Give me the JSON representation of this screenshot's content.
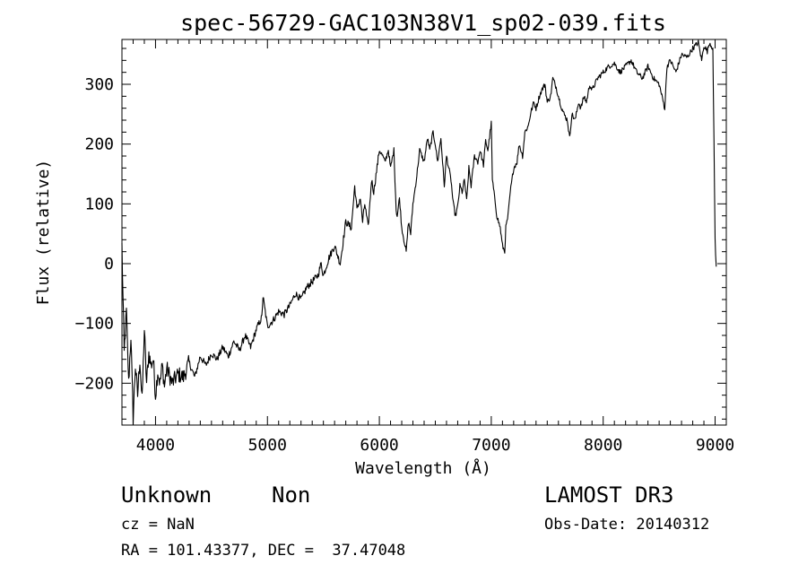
{
  "chart_data": {
    "type": "line",
    "title": "spec-56729-GAC103N38V1_sp02-039.fits",
    "xlabel": "Wavelength (Å)",
    "ylabel": "Flux (relative)",
    "xlim": [
      3700,
      9100
    ],
    "ylim": [
      -270,
      375
    ],
    "xticks": [
      4000,
      5000,
      6000,
      7000,
      8000,
      9000
    ],
    "yticks": [
      -200,
      -100,
      0,
      100,
      200,
      300
    ],
    "xtick_labels": [
      "4000",
      "5000",
      "6000",
      "7000",
      "8000",
      "9000"
    ],
    "ytick_labels": [
      "−200",
      "−100",
      "0",
      "100",
      "200",
      "300"
    ],
    "grid": false,
    "series": [
      {
        "line_color": "#000000",
        "x": [
          3700,
          3720,
          3740,
          3760,
          3780,
          3800,
          3820,
          3840,
          3860,
          3880,
          3900,
          3920,
          3940,
          3960,
          3980,
          4000,
          4020,
          4040,
          4060,
          4080,
          4100,
          4150,
          4200,
          4250,
          4300,
          4350,
          4400,
          4450,
          4500,
          4550,
          4600,
          4650,
          4700,
          4750,
          4800,
          4850,
          4900,
          4950,
          4960,
          5000,
          5050,
          5100,
          5150,
          5200,
          5250,
          5300,
          5350,
          5400,
          5450,
          5480,
          5500,
          5550,
          5600,
          5650,
          5700,
          5750,
          5780,
          5800,
          5830,
          5850,
          5870,
          5900,
          5930,
          5950,
          6000,
          6030,
          6050,
          6080,
          6100,
          6130,
          6150,
          6160,
          6180,
          6200,
          6220,
          6240,
          6260,
          6280,
          6300,
          6330,
          6360,
          6400,
          6430,
          6450,
          6480,
          6500,
          6520,
          6550,
          6580,
          6600,
          6620,
          6640,
          6660,
          6680,
          6700,
          6720,
          6740,
          6760,
          6780,
          6800,
          6820,
          6850,
          6880,
          6900,
          6930,
          6950,
          6970,
          6990,
          7000,
          7010,
          7030,
          7050,
          7080,
          7100,
          7120,
          7130,
          7150,
          7170,
          7200,
          7230,
          7250,
          7280,
          7300,
          7330,
          7350,
          7380,
          7400,
          7430,
          7450,
          7480,
          7500,
          7530,
          7550,
          7580,
          7600,
          7630,
          7650,
          7680,
          7700,
          7720,
          7750,
          7780,
          7800,
          7830,
          7850,
          7880,
          7900,
          7950,
          8000,
          8050,
          8100,
          8150,
          8200,
          8250,
          8300,
          8350,
          8400,
          8450,
          8500,
          8550,
          8570,
          8600,
          8650,
          8700,
          8750,
          8800,
          8850,
          8880,
          8900,
          8930,
          8950,
          8980,
          9000,
          9010
        ],
        "y": [
          30,
          -150,
          -80,
          -200,
          -120,
          -260,
          -170,
          -220,
          -160,
          -230,
          -110,
          -200,
          -150,
          -170,
          -160,
          -220,
          -180,
          -200,
          -170,
          -205,
          -175,
          -200,
          -185,
          -190,
          -165,
          -190,
          -155,
          -170,
          -150,
          -160,
          -140,
          -155,
          -130,
          -145,
          -120,
          -140,
          -110,
          -90,
          -55,
          -105,
          -95,
          -80,
          -85,
          -70,
          -50,
          -60,
          -40,
          -30,
          -20,
          0,
          -20,
          10,
          30,
          0,
          70,
          60,
          130,
          90,
          110,
          70,
          100,
          60,
          140,
          120,
          190,
          180,
          170,
          190,
          160,
          190,
          90,
          80,
          110,
          60,
          40,
          20,
          70,
          50,
          100,
          140,
          190,
          170,
          210,
          190,
          220,
          200,
          170,
          210,
          130,
          180,
          160,
          140,
          100,
          80,
          95,
          130,
          120,
          140,
          105,
          160,
          130,
          180,
          170,
          190,
          165,
          205,
          190,
          220,
          235,
          140,
          110,
          80,
          60,
          30,
          20,
          60,
          80,
          120,
          160,
          170,
          200,
          180,
          220,
          230,
          250,
          270,
          260,
          280,
          290,
          300,
          270,
          280,
          310,
          295,
          280,
          260,
          250,
          240,
          210,
          250,
          240,
          270,
          260,
          280,
          270,
          300,
          290,
          310,
          320,
          330,
          335,
          320,
          330,
          340,
          320,
          310,
          330,
          310,
          300,
          260,
          330,
          340,
          320,
          350,
          345,
          360,
          370,
          340,
          365,
          355,
          370,
          360,
          40,
          -5
        ]
      }
    ]
  },
  "footer": {
    "object_class": "Unknown",
    "object_subclass": "Non",
    "survey": "LAMOST DR3",
    "cz": "cz = NaN",
    "obs_date": "Obs-Date: 20140312",
    "coords": "RA = 101.43377, DEC =  37.47048"
  }
}
